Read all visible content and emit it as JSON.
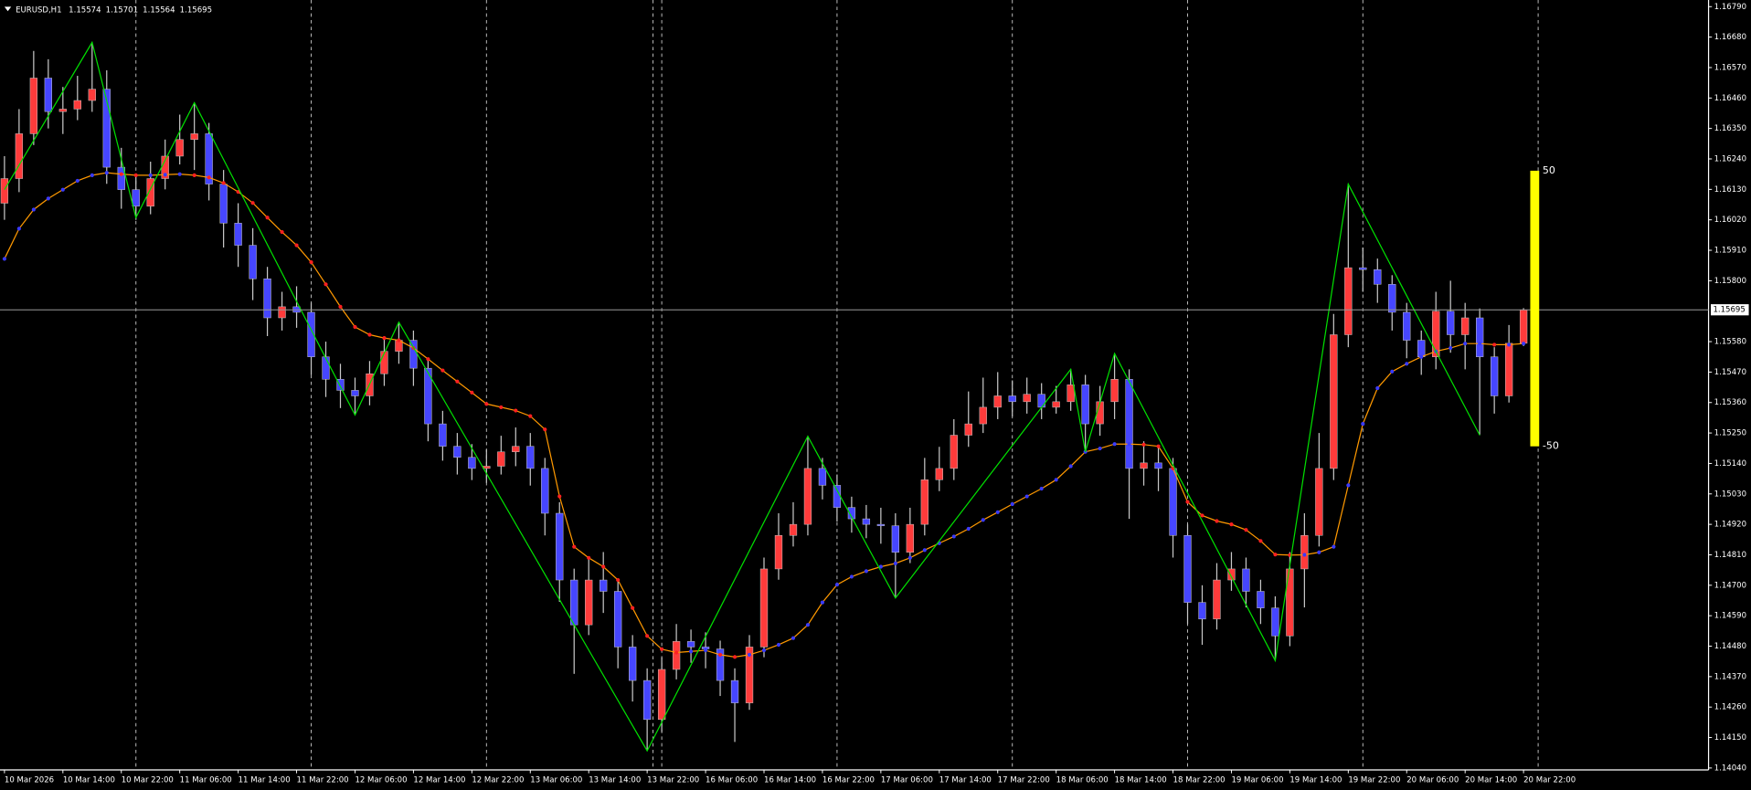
{
  "chart_data": {
    "type": "candlestick",
    "title": "EURUSD,H1",
    "up_color": "#ff3b3b",
    "down_color": "#4646ff",
    "wick_color": "#c8c8c8",
    "ylim": [
      1.14033,
      1.16814
    ],
    "yticks": [
      {
        "value": 1.1679,
        "label": "1.16790"
      },
      {
        "value": 1.1668,
        "label": "1.16680"
      },
      {
        "value": 1.1657,
        "label": "1.16570"
      },
      {
        "value": 1.1646,
        "label": "1.16460"
      },
      {
        "value": 1.1635,
        "label": "1.16350"
      },
      {
        "value": 1.1624,
        "label": "1.16240"
      },
      {
        "value": 1.1613,
        "label": "1.16130"
      },
      {
        "value": 1.1602,
        "label": "1.16020"
      },
      {
        "value": 1.1591,
        "label": "1.15910"
      },
      {
        "value": 1.158,
        "label": "1.15800"
      },
      {
        "value": 1.1558,
        "label": "1.15580"
      },
      {
        "value": 1.1547,
        "label": "1.15470"
      },
      {
        "value": 1.1536,
        "label": "1.15360"
      },
      {
        "value": 1.1525,
        "label": "1.15250"
      },
      {
        "value": 1.1514,
        "label": "1.15140"
      },
      {
        "value": 1.1503,
        "label": "1.15030"
      },
      {
        "value": 1.1492,
        "label": "1.14920"
      },
      {
        "value": 1.1481,
        "label": "1.14810"
      },
      {
        "value": 1.147,
        "label": "1.14700"
      },
      {
        "value": 1.1459,
        "label": "1.14590"
      },
      {
        "value": 1.1448,
        "label": "1.14480"
      },
      {
        "value": 1.1437,
        "label": "1.14370"
      },
      {
        "value": 1.1426,
        "label": "1.14260"
      },
      {
        "value": 1.1415,
        "label": "1.14150"
      },
      {
        "value": 1.1404,
        "label": "1.14040"
      }
    ],
    "x_labels": [
      "10 Mar 2026",
      "10 Mar 14:00",
      "10 Mar 22:00",
      "11 Mar 06:00",
      "11 Mar 14:00",
      "11 Mar 22:00",
      "12 Mar 06:00",
      "12 Mar 14:00",
      "12 Mar 22:00",
      "13 Mar 06:00",
      "13 Mar 14:00",
      "13 Mar 22:00",
      "16 Mar 06:00",
      "16 Mar 14:00",
      "16 Mar 22:00",
      "17 Mar 06:00",
      "17 Mar 14:00",
      "17 Mar 22:00",
      "18 Mar 06:00",
      "18 Mar 14:00",
      "18 Mar 22:00",
      "19 Mar 06:00",
      "19 Mar 14:00",
      "19 Mar 22:00",
      "20 Mar 06:00",
      "20 Mar 14:00",
      "20 Mar 22:00"
    ],
    "candles": [
      [
        1.1608,
        1.1625,
        1.1602,
        1.16169
      ],
      [
        1.16169,
        1.1642,
        1.1612,
        1.16331
      ],
      [
        1.16331,
        1.1663,
        1.1629,
        1.16532
      ],
      [
        1.16532,
        1.166,
        1.1635,
        1.16411
      ],
      [
        1.16411,
        1.165,
        1.1633,
        1.1642
      ],
      [
        1.1642,
        1.1654,
        1.1638,
        1.16451
      ],
      [
        1.16451,
        1.16661,
        1.1641,
        1.16492
      ],
      [
        1.16492,
        1.1656,
        1.1615,
        1.1621
      ],
      [
        1.1621,
        1.1628,
        1.1606,
        1.16129
      ],
      [
        1.16129,
        1.1618,
        1.1602,
        1.16069
      ],
      [
        1.16069,
        1.1623,
        1.1604,
        1.16169
      ],
      [
        1.16169,
        1.1631,
        1.1613,
        1.1625
      ],
      [
        1.1625,
        1.164,
        1.1622,
        1.1631
      ],
      [
        1.1631,
        1.16443,
        1.162,
        1.16331
      ],
      [
        1.16331,
        1.1637,
        1.1609,
        1.16149
      ],
      [
        1.16149,
        1.162,
        1.1592,
        1.16008
      ],
      [
        1.16008,
        1.1608,
        1.1585,
        1.15928
      ],
      [
        1.15928,
        1.1599,
        1.1573,
        1.15807
      ],
      [
        1.15807,
        1.1585,
        1.156,
        1.15666
      ],
      [
        1.15666,
        1.1576,
        1.1562,
        1.15706
      ],
      [
        1.15706,
        1.1578,
        1.1563,
        1.15686
      ],
      [
        1.15686,
        1.1572,
        1.1546,
        1.15525
      ],
      [
        1.15525,
        1.1558,
        1.1538,
        1.15444
      ],
      [
        1.15444,
        1.155,
        1.1534,
        1.15404
      ],
      [
        1.15404,
        1.1545,
        1.15315,
        1.15384
      ],
      [
        1.15384,
        1.1551,
        1.1535,
        1.15464
      ],
      [
        1.15464,
        1.156,
        1.1542,
        1.15545
      ],
      [
        1.15545,
        1.1565,
        1.155,
        1.15585
      ],
      [
        1.15585,
        1.1562,
        1.1542,
        1.15484
      ],
      [
        1.15484,
        1.1552,
        1.1522,
        1.15283
      ],
      [
        1.15283,
        1.1533,
        1.1515,
        1.15202
      ],
      [
        1.15202,
        1.1525,
        1.151,
        1.15162
      ],
      [
        1.15162,
        1.1521,
        1.1508,
        1.15122
      ],
      [
        1.15122,
        1.1519,
        1.1507,
        1.1513
      ],
      [
        1.1513,
        1.1524,
        1.151,
        1.15182
      ],
      [
        1.15182,
        1.1527,
        1.1513,
        1.15202
      ],
      [
        1.15202,
        1.1525,
        1.1506,
        1.15122
      ],
      [
        1.15122,
        1.1516,
        1.1488,
        1.1496
      ],
      [
        1.1496,
        1.15,
        1.1464,
        1.14719
      ],
      [
        1.14719,
        1.1476,
        1.1438,
        1.14557
      ],
      [
        1.14557,
        1.148,
        1.1452,
        1.14719
      ],
      [
        1.14719,
        1.1482,
        1.146,
        1.14678
      ],
      [
        1.14678,
        1.1472,
        1.144,
        1.14477
      ],
      [
        1.14477,
        1.1452,
        1.1428,
        1.14356
      ],
      [
        1.14356,
        1.144,
        1.14102,
        1.14215
      ],
      [
        1.14215,
        1.1444,
        1.1417,
        1.14396
      ],
      [
        1.14396,
        1.1456,
        1.1436,
        1.14497
      ],
      [
        1.14497,
        1.1454,
        1.1442,
        1.14477
      ],
      [
        1.14477,
        1.1453,
        1.144,
        1.1447
      ],
      [
        1.1447,
        1.145,
        1.143,
        1.14356
      ],
      [
        1.14356,
        1.144,
        1.14134,
        1.14275
      ],
      [
        1.14275,
        1.1452,
        1.1425,
        1.14477
      ],
      [
        1.14477,
        1.148,
        1.1444,
        1.14759
      ],
      [
        1.14759,
        1.1496,
        1.1472,
        1.1488
      ],
      [
        1.1488,
        1.15,
        1.1484,
        1.1492
      ],
      [
        1.1492,
        1.15238,
        1.1488,
        1.15122
      ],
      [
        1.15122,
        1.1516,
        1.1501,
        1.15061
      ],
      [
        1.15061,
        1.151,
        1.1493,
        1.14981
      ],
      [
        1.14981,
        1.1502,
        1.1489,
        1.1494
      ],
      [
        1.1494,
        1.1499,
        1.1487,
        1.1492
      ],
      [
        1.1492,
        1.1498,
        1.1485,
        1.14915
      ],
      [
        1.14915,
        1.1496,
        1.14654,
        1.14819
      ],
      [
        1.14819,
        1.1498,
        1.1478,
        1.1492
      ],
      [
        1.1492,
        1.1516,
        1.1488,
        1.15081
      ],
      [
        1.15081,
        1.152,
        1.1504,
        1.15122
      ],
      [
        1.15122,
        1.153,
        1.1508,
        1.15242
      ],
      [
        1.15242,
        1.154,
        1.152,
        1.15283
      ],
      [
        1.15283,
        1.1545,
        1.1525,
        1.15343
      ],
      [
        1.15343,
        1.1547,
        1.153,
        1.15384
      ],
      [
        1.15384,
        1.1544,
        1.1531,
        1.15363
      ],
      [
        1.15363,
        1.1545,
        1.1532,
        1.1539
      ],
      [
        1.1539,
        1.1543,
        1.153,
        1.15343
      ],
      [
        1.15343,
        1.1542,
        1.1532,
        1.15363
      ],
      [
        1.15363,
        1.1548,
        1.1533,
        1.15424
      ],
      [
        1.15424,
        1.1546,
        1.15182,
        1.15283
      ],
      [
        1.15283,
        1.1542,
        1.1524,
        1.15363
      ],
      [
        1.15363,
        1.15537,
        1.153,
        1.15444
      ],
      [
        1.15444,
        1.1548,
        1.1494,
        1.15122
      ],
      [
        1.15122,
        1.1522,
        1.1506,
        1.15142
      ],
      [
        1.15142,
        1.152,
        1.1504,
        1.15122
      ],
      [
        1.15122,
        1.1516,
        1.148,
        1.1488
      ],
      [
        1.1488,
        1.1492,
        1.1456,
        1.14638
      ],
      [
        1.14638,
        1.147,
        1.14485,
        1.14578
      ],
      [
        1.14578,
        1.1478,
        1.1454,
        1.14719
      ],
      [
        1.14719,
        1.1482,
        1.1468,
        1.14759
      ],
      [
        1.14759,
        1.148,
        1.1462,
        1.14678
      ],
      [
        1.14678,
        1.1472,
        1.1456,
        1.14618
      ],
      [
        1.14618,
        1.1466,
        1.14428,
        1.14517
      ],
      [
        1.14517,
        1.1482,
        1.1448,
        1.14759
      ],
      [
        1.14759,
        1.1496,
        1.1462,
        1.1488
      ],
      [
        1.1488,
        1.1525,
        1.1484,
        1.15122
      ],
      [
        1.15122,
        1.1568,
        1.1508,
        1.15605
      ],
      [
        1.15605,
        1.16149,
        1.1556,
        1.15847
      ],
      [
        1.15847,
        1.1592,
        1.1576,
        1.1584
      ],
      [
        1.1584,
        1.1588,
        1.1572,
        1.15787
      ],
      [
        1.15787,
        1.1582,
        1.1562,
        1.15686
      ],
      [
        1.15686,
        1.1572,
        1.1552,
        1.15585
      ],
      [
        1.15585,
        1.1562,
        1.1546,
        1.15525
      ],
      [
        1.15525,
        1.1576,
        1.1548,
        1.1569
      ],
      [
        1.1569,
        1.158,
        1.1554,
        1.15605
      ],
      [
        1.15605,
        1.1572,
        1.1548,
        1.15666
      ],
      [
        1.15666,
        1.157,
        1.15242,
        1.15525
      ],
      [
        1.15525,
        1.1556,
        1.1532,
        1.15384
      ],
      [
        1.15384,
        1.1564,
        1.1536,
        1.15574
      ],
      [
        1.15574,
        1.15701,
        1.15564,
        1.15695
      ]
    ],
    "ma": {
      "color": "#ff9900",
      "rise_color": "#3a3aff",
      "fall_color": "#ff2020",
      "values": [
        1.15879,
        1.15988,
        1.16057,
        1.16097,
        1.16129,
        1.16161,
        1.16181,
        1.1619,
        1.16185,
        1.16181,
        1.16181,
        1.16183,
        1.16185,
        1.16181,
        1.16173,
        1.16153,
        1.16121,
        1.16081,
        1.16028,
        1.15976,
        1.15928,
        1.15867,
        1.15787,
        1.15706,
        1.15633,
        1.15605,
        1.15593,
        1.15585,
        1.15557,
        1.15517,
        1.15476,
        1.15436,
        1.15396,
        1.15355,
        1.15343,
        1.15331,
        1.15311,
        1.15263,
        1.15021,
        1.14839,
        1.14799,
        1.14767,
        1.14719,
        1.14618,
        1.14517,
        1.14469,
        1.14457,
        1.14461,
        1.14465,
        1.14449,
        1.14441,
        1.14449,
        1.14465,
        1.14485,
        1.14509,
        1.14557,
        1.14638,
        1.14702,
        1.14731,
        1.14751,
        1.14767,
        1.14779,
        1.14799,
        1.14827,
        1.14852,
        1.14876,
        1.14904,
        1.14936,
        1.14964,
        1.14993,
        1.15021,
        1.15049,
        1.15081,
        1.1513,
        1.15182,
        1.15194,
        1.1521,
        1.1521,
        1.15208,
        1.15202,
        1.15122,
        1.15001,
        1.14952,
        1.14932,
        1.1492,
        1.149,
        1.1486,
        1.14811,
        1.14809,
        1.1481,
        1.14819,
        1.14839,
        1.15061,
        1.15283,
        1.15412,
        1.15472,
        1.155,
        1.15525,
        1.15545,
        1.15557,
        1.15573,
        1.15573,
        1.15569,
        1.15569,
        1.15573
      ]
    },
    "zigzag": {
      "color": "#00e000",
      "x": [
        0,
        6,
        9,
        13,
        24,
        27,
        44,
        55,
        61,
        73,
        74,
        76,
        87,
        92,
        101
      ],
      "values": [
        1.16129,
        1.16661,
        1.16028,
        1.16443,
        1.15315,
        1.1565,
        1.14102,
        1.15238,
        1.14654,
        1.1548,
        1.15182,
        1.15537,
        1.14428,
        1.16149,
        1.15242
      ]
    },
    "gauge": {
      "color": "#ffff00",
      "max": 50,
      "min": -50
    }
  }
}
